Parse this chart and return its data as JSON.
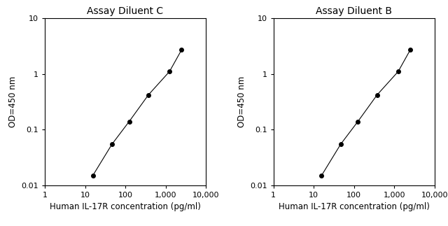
{
  "left_title": "Assay Diluent C",
  "right_title": "Assay Diluent B",
  "xlabel": "Human IL-17R concentration (pg/ml)",
  "ylabel": "OD=450 nm",
  "x_data": [
    15.6,
    46.9,
    125,
    375,
    1250,
    2500
  ],
  "y_data_left": [
    0.015,
    0.055,
    0.14,
    0.42,
    1.1,
    2.7
  ],
  "y_data_right": [
    0.015,
    0.055,
    0.14,
    0.42,
    1.1,
    2.7
  ],
  "xlim": [
    1,
    10000
  ],
  "ylim": [
    0.01,
    10
  ],
  "line_color": "#000000",
  "marker": "o",
  "markersize": 4,
  "title_fontsize": 10,
  "label_fontsize": 8.5,
  "tick_fontsize": 8,
  "bg_color": "#ffffff",
  "x_ticks": [
    1,
    10,
    100,
    1000,
    10000
  ],
  "x_tick_labels": [
    "1",
    "10",
    "100",
    "1,000",
    "10,000"
  ],
  "y_ticks": [
    0.01,
    0.1,
    1,
    10
  ],
  "y_tick_labels": [
    "0.01",
    "0.1",
    "1",
    "10"
  ]
}
